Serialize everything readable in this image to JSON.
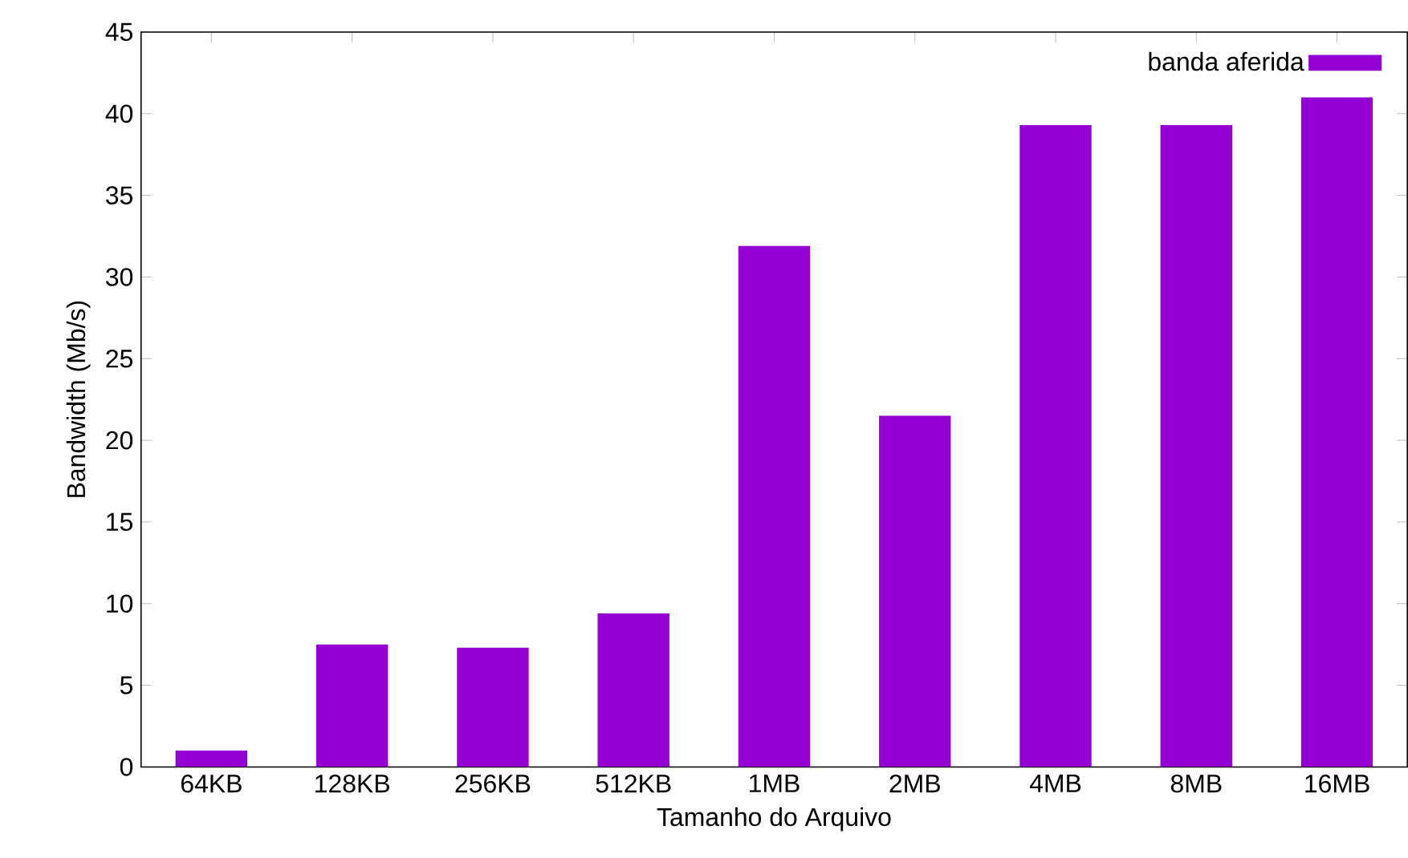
{
  "chart_data": {
    "type": "bar",
    "xlabel": "Tamanho do Arquivo",
    "ylabel": "Bandwidth (Mb/s)",
    "categories": [
      "64KB",
      "128KB",
      "256KB",
      "512KB",
      "1MB",
      "2MB",
      "4MB",
      "8MB",
      "16MB"
    ],
    "series": [
      {
        "name": "banda aferida",
        "color": "#9400d3",
        "values": [
          1.0,
          7.5,
          7.3,
          9.4,
          31.9,
          21.5,
          39.3,
          39.3,
          41.0
        ]
      }
    ],
    "ylim": [
      0,
      45
    ],
    "yticks": [
      0,
      5,
      10,
      15,
      20,
      25,
      30,
      35,
      40,
      45
    ],
    "legend": "top right",
    "grid": false
  }
}
